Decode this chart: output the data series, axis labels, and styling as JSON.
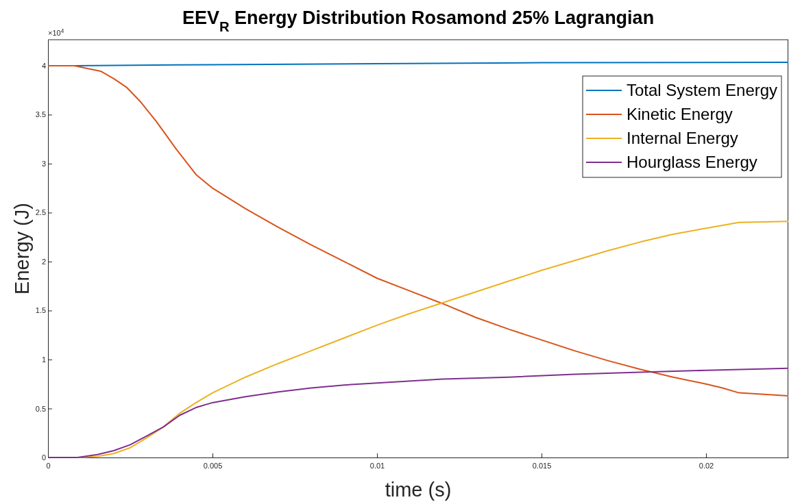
{
  "chart_data": {
    "type": "line",
    "title": "EEV$_{R}$ Energy Distribution Rosamond 25% Lagrangian",
    "xlabel": "time (s)",
    "ylabel": "Energy (J)",
    "annotations": [
      "×10$^{4}$"
    ],
    "xlim": [
      0,
      0.0225
    ],
    "xticks": [
      0,
      0.005,
      0.01,
      0.015,
      0.02
    ],
    "ylim": [
      0,
      4.265
    ],
    "yticks": [
      0,
      0.5,
      1,
      1.5,
      2,
      2.5,
      3,
      3.5,
      4
    ],
    "grid": false,
    "legend": "top right",
    "line_style": "solid",
    "marker": "none",
    "series": [
      {
        "name": "Total System Energy",
        "color": "#0072bd",
        "x": [
          0,
          0.0008,
          0.005,
          0.01,
          0.015,
          0.0225
        ],
        "values": [
          4,
          4,
          4.01,
          4.02,
          4.03,
          4.035
        ]
      },
      {
        "name": "Kinetic Energy",
        "color": "#d95319",
        "x": [
          0,
          0.0008,
          0.0016,
          0.002,
          0.0024,
          0.0028,
          0.0033,
          0.0039,
          0.0045,
          0.005,
          0.006,
          0.007,
          0.008,
          0.009,
          0.01,
          0.011,
          0.012,
          0.013,
          0.014,
          0.015,
          0.016,
          0.017,
          0.018,
          0.019,
          0.02,
          0.0205,
          0.021,
          0.0225
        ],
        "values": [
          4,
          4,
          3.944,
          3.867,
          3.776,
          3.636,
          3.427,
          3.147,
          2.888,
          2.75,
          2.54,
          2.35,
          2.17,
          2,
          1.83,
          1.7,
          1.57,
          1.43,
          1.31,
          1.2,
          1.09,
          0.99,
          0.9,
          0.82,
          0.75,
          0.71,
          0.66,
          0.63
        ]
      },
      {
        "name": "Internal Energy",
        "color": "#edb120",
        "x": [
          0,
          0.0009,
          0.0015,
          0.002,
          0.0025,
          0.003,
          0.0035,
          0.004,
          0.0045,
          0.005,
          0.006,
          0.007,
          0.008,
          0.009,
          0.01,
          0.011,
          0.012,
          0.013,
          0.014,
          0.015,
          0.016,
          0.017,
          0.018,
          0.019,
          0.02,
          0.021,
          0.0225
        ],
        "values": [
          0,
          0,
          0.01,
          0.04,
          0.1,
          0.2,
          0.31,
          0.45,
          0.56,
          0.66,
          0.82,
          0.96,
          1.09,
          1.22,
          1.35,
          1.47,
          1.58,
          1.69,
          1.8,
          1.91,
          2.01,
          2.11,
          2.2,
          2.28,
          2.34,
          2.4,
          2.41
        ]
      },
      {
        "name": "Hourglass Energy",
        "color": "#7e2f8e",
        "x": [
          0,
          0.0009,
          0.0015,
          0.002,
          0.0025,
          0.003,
          0.0035,
          0.004,
          0.0045,
          0.005,
          0.006,
          0.007,
          0.008,
          0.009,
          0.01,
          0.012,
          0.014,
          0.016,
          0.018,
          0.02,
          0.0225
        ],
        "values": [
          0,
          0,
          0.03,
          0.07,
          0.13,
          0.22,
          0.31,
          0.43,
          0.51,
          0.56,
          0.62,
          0.67,
          0.71,
          0.74,
          0.76,
          0.8,
          0.82,
          0.85,
          0.87,
          0.89,
          0.91
        ]
      }
    ]
  }
}
